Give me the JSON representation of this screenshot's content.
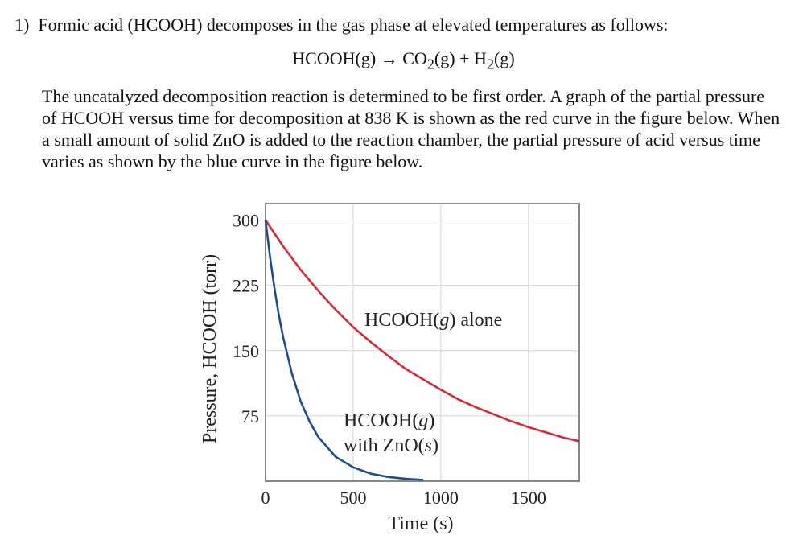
{
  "question": {
    "number": "1)",
    "intro": "Formic acid (HCOOH) decomposes in the gas phase at elevated temperatures as follows:",
    "equation": {
      "reactant": "HCOOH(g)",
      "arrow": "→",
      "product1": "CO",
      "sub1": "2",
      "state1": "(g) + H",
      "sub2": "2",
      "state2": "(g)"
    },
    "paragraph": "The uncatalyzed decomposition reaction is determined to be first order. A graph of the partial pressure of HCOOH versus time for decomposition at 838 K is shown as the red curve in the figure below. When a small amount of solid ZnO is added to the reaction chamber, the partial pressure of acid versus time varies as shown by the blue curve in the figure below."
  },
  "chart_data": {
    "type": "line",
    "xlabel": "Time (s)",
    "ylabel": "Pressure, HCOOH (torr)",
    "xlim": [
      0,
      1790
    ],
    "ylim": [
      0,
      319
    ],
    "xticks": [
      0,
      500,
      1000,
      1500
    ],
    "yticks": [
      75,
      150,
      225,
      300
    ],
    "grid": true,
    "series": [
      {
        "name": "HCOOH(g) alone",
        "color": "#d62a3a",
        "x": [
          0,
          100,
          200,
          300,
          400,
          500,
          600,
          700,
          800,
          900,
          1000,
          1100,
          1200,
          1300,
          1400,
          1500,
          1600,
          1700,
          1790
        ],
        "y": [
          300,
          270,
          243,
          219,
          197,
          177,
          160,
          144,
          129,
          117,
          105,
          94,
          85,
          77,
          69,
          62,
          56,
          50,
          46
        ]
      },
      {
        "name": "HCOOH(g) with ZnO(s)",
        "color": "#1f4e85",
        "x": [
          0,
          25,
          50,
          75,
          100,
          150,
          200,
          250,
          300,
          400,
          500,
          600,
          700,
          800,
          900
        ],
        "y": [
          300,
          259,
          223,
          192,
          166,
          124,
          92,
          69,
          51,
          28,
          16,
          8.7,
          4.8,
          2.7,
          1.5
        ]
      }
    ],
    "annotations": [
      {
        "label_lines": [
          "HCOOH(",
          "g",
          ") alone"
        ]
      },
      {
        "label_lines": [
          "HCOOH(",
          "g",
          ")"
        ],
        "line2": [
          "with ZnO(",
          "s",
          ")"
        ]
      }
    ]
  }
}
